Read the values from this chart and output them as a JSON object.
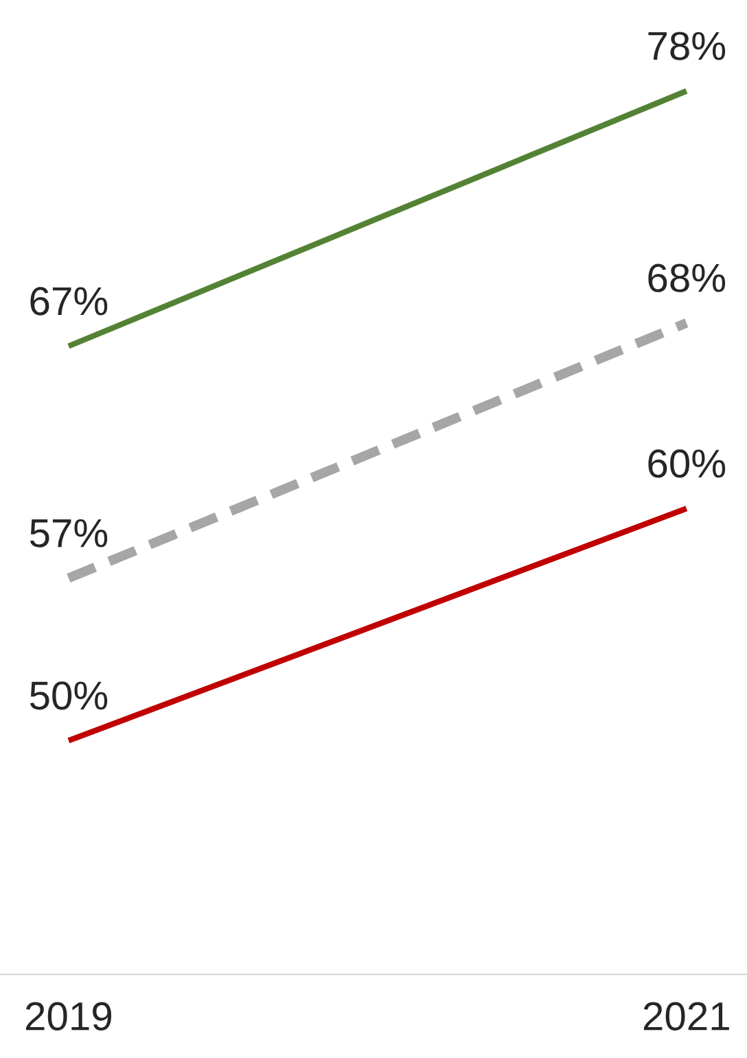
{
  "chart_data": {
    "type": "line",
    "categories": [
      "2019",
      "2021"
    ],
    "series": [
      {
        "color": "#548235",
        "values": [
          67,
          78
        ],
        "value_labels": [
          "67%",
          "78%"
        ],
        "line_style": "solid"
      },
      {
        "color": "#a6a6a6",
        "values": [
          57,
          68
        ],
        "value_labels": [
          "57%",
          "68%"
        ],
        "line_style": "dashed"
      },
      {
        "color": "#c00000",
        "values": [
          50,
          60
        ],
        "value_labels": [
          "50%",
          "60%"
        ],
        "line_style": "solid"
      }
    ],
    "tick_labels": "x",
    "grid": false,
    "legend": false,
    "marker": "none"
  }
}
